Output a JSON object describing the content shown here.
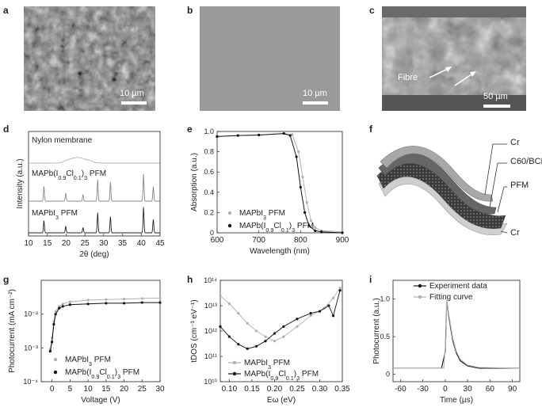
{
  "panels": {
    "a": {
      "letter": "a",
      "scale_label": "10 µm"
    },
    "b": {
      "letter": "b",
      "scale_label": "10 µm"
    },
    "c": {
      "letter": "c",
      "scale_label": "50 µm",
      "annotation": "Fibre"
    },
    "d": {
      "letter": "d"
    },
    "e": {
      "letter": "e"
    },
    "f": {
      "letter": "f",
      "layers": [
        "Cr",
        "C60/BCP",
        "PFM",
        "Cr"
      ]
    },
    "g": {
      "letter": "g"
    },
    "h": {
      "letter": "h"
    },
    "i": {
      "letter": "i"
    }
  },
  "chart_data": [
    {
      "panel": "d",
      "type": "line",
      "xlabel": "2θ (deg)",
      "ylabel": "Intensity (a.u.)",
      "xlim": [
        10,
        45
      ],
      "x_ticks": [
        10,
        15,
        20,
        25,
        30,
        35,
        40,
        45
      ],
      "series": [
        {
          "name": "Nylon membrane",
          "peaks": [
            [
              20.5,
              0.35
            ],
            [
              22.5,
              0.45
            ],
            [
              24.0,
              0.4
            ],
            [
              26.0,
              0.3
            ]
          ]
        },
        {
          "name": "MAPb(I0.9Cl0.1)3 PFM",
          "peaks": [
            [
              14.1,
              0.55
            ],
            [
              19.9,
              0.3
            ],
            [
              24.5,
              0.25
            ],
            [
              28.4,
              0.8
            ],
            [
              31.8,
              0.7
            ],
            [
              40.6,
              1.0
            ],
            [
              43.2,
              0.55
            ]
          ]
        },
        {
          "name": "MAPbI3 PFM",
          "peaks": [
            [
              14.1,
              0.45
            ],
            [
              19.9,
              0.25
            ],
            [
              24.5,
              0.2
            ],
            [
              28.4,
              0.75
            ],
            [
              31.8,
              0.6
            ],
            [
              40.6,
              0.95
            ],
            [
              43.2,
              0.5
            ]
          ]
        }
      ]
    },
    {
      "panel": "e",
      "type": "line",
      "xlabel": "Wavelength (nm)",
      "ylabel": "Absorption (a.u.)",
      "xlim": [
        600,
        900
      ],
      "ylim": [
        0,
        1.0
      ],
      "x_ticks": [
        600,
        700,
        800,
        900
      ],
      "y_ticks": [
        "0",
        "0.2",
        "0.4",
        "0.6",
        "0.8",
        "1.0"
      ],
      "series": [
        {
          "name": "MAPbI3 PFM",
          "color": "#b0b0b0",
          "points": [
            [
              600,
              0.95
            ],
            [
              650,
              0.96
            ],
            [
              700,
              0.965
            ],
            [
              760,
              0.98
            ],
            [
              780,
              0.97
            ],
            [
              795,
              0.8
            ],
            [
              805,
              0.55
            ],
            [
              815,
              0.3
            ],
            [
              825,
              0.12
            ],
            [
              835,
              0.05
            ],
            [
              850,
              0.02
            ],
            [
              900,
              0.01
            ]
          ]
        },
        {
          "name": "MAPb(I0.9Cl0.1)3 PFM",
          "color": "#111111",
          "points": [
            [
              600,
              0.95
            ],
            [
              650,
              0.96
            ],
            [
              700,
              0.965
            ],
            [
              760,
              0.98
            ],
            [
              775,
              0.96
            ],
            [
              790,
              0.75
            ],
            [
              800,
              0.45
            ],
            [
              810,
              0.2
            ],
            [
              820,
              0.07
            ],
            [
              835,
              0.02
            ],
            [
              850,
              0.01
            ],
            [
              900,
              0.0
            ]
          ]
        }
      ]
    },
    {
      "panel": "g",
      "type": "scatter",
      "xlabel": "Voltage (V)",
      "ylabel": "Photocurrent (mA cm⁻²)",
      "xlim": [
        -3,
        30
      ],
      "ylim_log": [
        0.0001,
        0.1
      ],
      "x_ticks": [
        0,
        5,
        10,
        15,
        20,
        25,
        30
      ],
      "y_ticks": [
        "10⁻⁴",
        "10⁻³",
        "10⁻²"
      ],
      "series": [
        {
          "name": "MAPbI3 PFM",
          "color": "#b0b0b0",
          "points": [
            [
              -0.5,
              0.0009
            ],
            [
              0,
              0.002
            ],
            [
              0.5,
              0.006
            ],
            [
              1,
              0.012
            ],
            [
              2,
              0.017
            ],
            [
              3,
              0.02
            ],
            [
              5,
              0.023
            ],
            [
              10,
              0.026
            ],
            [
              15,
              0.027
            ],
            [
              20,
              0.028
            ],
            [
              25,
              0.029
            ],
            [
              30,
              0.03
            ]
          ]
        },
        {
          "name": "MAPb(I0.9Cl0.1)3 PFM",
          "color": "#111111",
          "points": [
            [
              -0.5,
              0.0008
            ],
            [
              0,
              0.0015
            ],
            [
              0.5,
              0.005
            ],
            [
              1,
              0.01
            ],
            [
              2,
              0.015
            ],
            [
              3,
              0.017
            ],
            [
              5,
              0.019
            ],
            [
              10,
              0.02
            ],
            [
              15,
              0.021
            ],
            [
              20,
              0.021
            ],
            [
              25,
              0.022
            ],
            [
              30,
              0.022
            ]
          ]
        }
      ]
    },
    {
      "panel": "h",
      "type": "line",
      "xlabel": "Eω (eV)",
      "ylabel": "tDOS (cm⁻³ eV⁻¹)",
      "xlim": [
        0.08,
        0.35
      ],
      "ylim_log": [
        10000000000.0,
        100000000000000.0
      ],
      "x_ticks": [
        0.1,
        0.15,
        0.2,
        0.25,
        0.3,
        0.35
      ],
      "x_tick_labels": [
        "0.10",
        "0.15",
        "0.20",
        "0.25",
        "0.30",
        "0.35"
      ],
      "y_ticks": [
        "10¹⁰",
        "10¹¹",
        "10¹²",
        "10¹³",
        "10¹⁴"
      ],
      "series": [
        {
          "name": "MAPbI3 PFM",
          "color": "#b0b0b0",
          "points": [
            [
              0.08,
              25000000000000.0
            ],
            [
              0.1,
              12000000000000.0
            ],
            [
              0.12,
              5000000000000.0
            ],
            [
              0.14,
              2000000000000.0
            ],
            [
              0.16,
              1000000000000.0
            ],
            [
              0.18,
              600000000000.0
            ],
            [
              0.2,
              400000000000.0
            ],
            [
              0.22,
              600000000000.0
            ],
            [
              0.25,
              1500000000000.0
            ],
            [
              0.28,
              4000000000000.0
            ],
            [
              0.31,
              8000000000000.0
            ],
            [
              0.33,
              20000000000000.0
            ],
            [
              0.345,
              50000000000000.0
            ]
          ]
        },
        {
          "name": "MAPb(I0.9Cl0.1)3 PFM",
          "color": "#111111",
          "points": [
            [
              0.08,
              1500000000000.0
            ],
            [
              0.1,
              600000000000.0
            ],
            [
              0.12,
              300000000000.0
            ],
            [
              0.14,
              200000000000.0
            ],
            [
              0.16,
              250000000000.0
            ],
            [
              0.18,
              400000000000.0
            ],
            [
              0.2,
              800000000000.0
            ],
            [
              0.22,
              1500000000000.0
            ],
            [
              0.25,
              3000000000000.0
            ],
            [
              0.28,
              5000000000000.0
            ],
            [
              0.3,
              6000000000000.0
            ],
            [
              0.32,
              10000000000000.0
            ],
            [
              0.33,
              4000000000000.0
            ],
            [
              0.345,
              40000000000000.0
            ]
          ]
        }
      ]
    },
    {
      "panel": "i",
      "type": "line",
      "xlabel": "Time (µs)",
      "ylabel": "Photocurrent (a.u.)",
      "xlim": [
        -70,
        100
      ],
      "ylim": [
        -0.1,
        1.25
      ],
      "x_ticks": [
        -60,
        -30,
        0,
        30,
        60,
        90
      ],
      "y_ticks": [
        "0",
        "0.5",
        "1.0"
      ],
      "series": [
        {
          "name": "Experiment data",
          "color": "#111111",
          "points": [
            [
              -70,
              0.08
            ],
            [
              -5,
              0.08
            ],
            [
              0,
              0.3
            ],
            [
              2,
              0.97
            ],
            [
              5,
              0.75
            ],
            [
              10,
              0.45
            ],
            [
              15,
              0.28
            ],
            [
              20,
              0.18
            ],
            [
              30,
              0.11
            ],
            [
              45,
              0.08
            ],
            [
              100,
              0.08
            ]
          ]
        },
        {
          "name": "Fitting curve",
          "color": "#b0b0b0",
          "points": [
            [
              -70,
              0.08
            ],
            [
              -2,
              0.08
            ],
            [
              1,
              0.5
            ],
            [
              2,
              0.99
            ],
            [
              5,
              0.78
            ],
            [
              10,
              0.48
            ],
            [
              15,
              0.3
            ],
            [
              20,
              0.2
            ],
            [
              30,
              0.12
            ],
            [
              45,
              0.09
            ],
            [
              100,
              0.08
            ]
          ]
        }
      ]
    }
  ]
}
